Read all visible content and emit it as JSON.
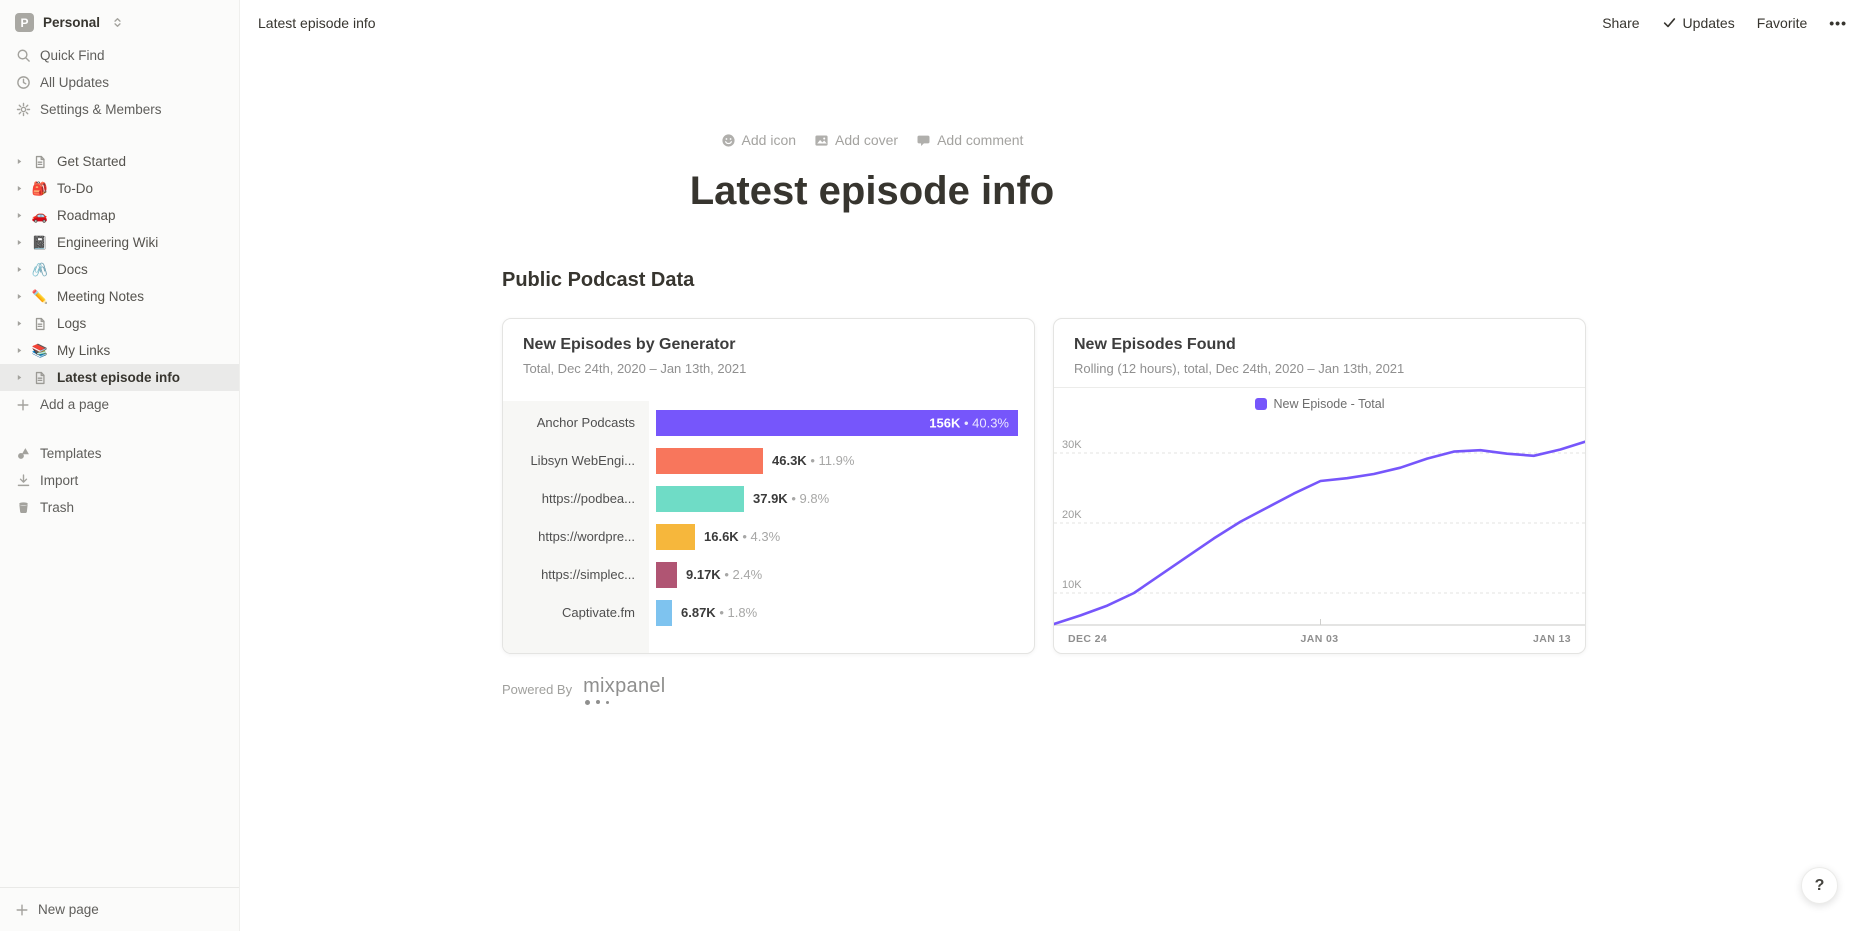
{
  "workspace": {
    "avatar_letter": "P",
    "name": "Personal"
  },
  "sidebar": {
    "menu": [
      {
        "label": "Quick Find",
        "icon": "search-icon"
      },
      {
        "label": "All Updates",
        "icon": "clock-icon"
      },
      {
        "label": "Settings & Members",
        "icon": "gear-icon"
      }
    ],
    "pages": [
      {
        "label": "Get Started",
        "icon": "page-icon"
      },
      {
        "label": "To-Do",
        "icon": "backpack-emoji-icon",
        "emoji": "🎒"
      },
      {
        "label": "Roadmap",
        "icon": "car-emoji-icon",
        "emoji": "🚗"
      },
      {
        "label": "Engineering Wiki",
        "icon": "notebook-emoji-icon",
        "emoji": "📓"
      },
      {
        "label": "Docs",
        "icon": "paperclip-emoji-icon",
        "emoji": "🖇️"
      },
      {
        "label": "Meeting Notes",
        "icon": "pencil-emoji-icon",
        "emoji": "✏️"
      },
      {
        "label": "Logs",
        "icon": "page-icon"
      },
      {
        "label": "My Links",
        "icon": "books-emoji-icon",
        "emoji": "📚"
      },
      {
        "label": "Latest episode info",
        "icon": "page-icon",
        "selected": true
      }
    ],
    "add_page_label": "Add a page",
    "tools": [
      {
        "label": "Templates",
        "icon": "templates-icon"
      },
      {
        "label": "Import",
        "icon": "import-icon"
      },
      {
        "label": "Trash",
        "icon": "trash-icon"
      }
    ],
    "new_page_label": "New page"
  },
  "topbar": {
    "breadcrumb": "Latest episode info",
    "actions": {
      "share": "Share",
      "updates": "Updates",
      "favorite": "Favorite",
      "more": "•••"
    }
  },
  "page": {
    "header_buttons": [
      {
        "label": "Add icon",
        "icon": "smiley-icon"
      },
      {
        "label": "Add cover",
        "icon": "image-icon"
      },
      {
        "label": "Add comment",
        "icon": "comment-icon"
      }
    ],
    "title": "Latest episode info",
    "section_heading": "Public Podcast Data",
    "powered_by": {
      "prefix": "Powered By",
      "brand": "mixpanel"
    }
  },
  "chart_data": [
    {
      "type": "bar",
      "orientation": "horizontal",
      "title": "New Episodes by Generator",
      "subtitle": "Total, Dec 24th, 2020 – Jan 13th, 2021",
      "categories": [
        "Anchor Podcasts",
        "Libsyn WebEngi...",
        "https://podbea...",
        "https://wordpre...",
        "https://simplec...",
        "Captivate.fm"
      ],
      "values": [
        156000,
        46300,
        37900,
        16600,
        9170,
        6870
      ],
      "value_labels": [
        "156K",
        "46.3K",
        "37.9K",
        "16.6K",
        "9.17K",
        "6.87K"
      ],
      "percent_labels": [
        "40.3%",
        "11.9%",
        "9.8%",
        "4.3%",
        "2.4%",
        "1.8%"
      ],
      "separator": "•",
      "bar_colors": [
        "#7656fb",
        "#f8765c",
        "#6fdcc6",
        "#f6b73c",
        "#b05573",
        "#7ec3ef"
      ]
    },
    {
      "type": "line",
      "title": "New Episodes Found",
      "subtitle": "Rolling (12 hours), total, Dec 24th, 2020 – Jan 13th, 2021",
      "legend": [
        {
          "label": "New Episode - Total",
          "color": "#7656fb"
        }
      ],
      "line_color": "#7656fb",
      "grid": "dashed-horizontal",
      "ylim": [
        5000,
        34000
      ],
      "y_ticks": [
        {
          "label": "10K",
          "value": 10000
        },
        {
          "label": "20K",
          "value": 20000
        },
        {
          "label": "30K",
          "value": 30000
        }
      ],
      "x_tick_labels": [
        "DEC 24",
        "JAN 03",
        "JAN 13"
      ],
      "x_span": [
        "Dec 24, 2020",
        "Jan 13, 2021"
      ],
      "values": [
        5200,
        6800,
        8200,
        10000,
        12600,
        15200,
        17800,
        20200,
        22200,
        24200,
        26000,
        26400,
        27000,
        27900,
        29200,
        30200,
        30400,
        29900,
        29600,
        30500,
        31700
      ]
    }
  ],
  "help_label": "?"
}
